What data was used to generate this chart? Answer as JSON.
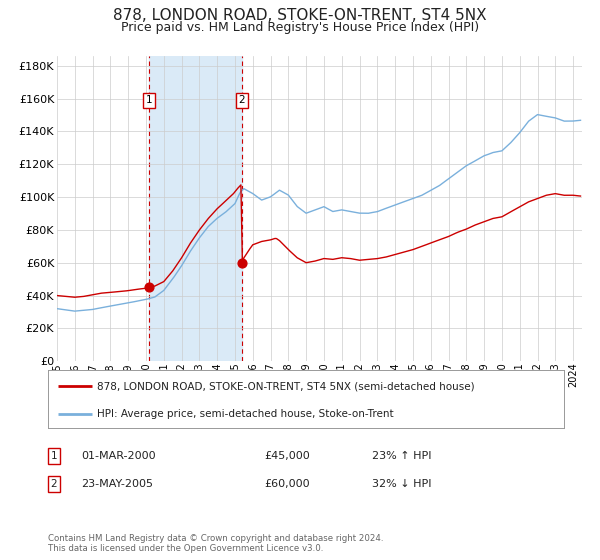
{
  "title": "878, LONDON ROAD, STOKE-ON-TRENT, ST4 5NX",
  "subtitle": "Price paid vs. HM Land Registry's House Price Index (HPI)",
  "title_fontsize": 11,
  "subtitle_fontsize": 9,
  "ylabel_ticks": [
    "£0",
    "£20K",
    "£40K",
    "£60K",
    "£80K",
    "£100K",
    "£120K",
    "£140K",
    "£160K",
    "£180K"
  ],
  "ylabel_values": [
    0,
    20000,
    40000,
    60000,
    80000,
    100000,
    120000,
    140000,
    160000,
    180000
  ],
  "ylim": [
    0,
    186000
  ],
  "sale1_date_num": 2000.17,
  "sale1_price": 45000,
  "sale1_label": "1",
  "sale1_text": "01-MAR-2000",
  "sale1_amount": "£45,000",
  "sale1_pct": "23% ↑ HPI",
  "sale2_date_num": 2005.39,
  "sale2_price": 60000,
  "sale2_label": "2",
  "sale2_text": "23-MAY-2005",
  "sale2_amount": "£60,000",
  "sale2_pct": "32% ↓ HPI",
  "legend_line1": "878, LONDON ROAD, STOKE-ON-TRENT, ST4 5NX (semi-detached house)",
  "legend_line2": "HPI: Average price, semi-detached house, Stoke-on-Trent",
  "footer": "Contains HM Land Registry data © Crown copyright and database right 2024.\nThis data is licensed under the Open Government Licence v3.0.",
  "hpi_color": "#7ab0dc",
  "price_color": "#cc0000",
  "bg_color": "#ffffff",
  "grid_color": "#cccccc",
  "shade_color": "#daeaf7",
  "xmin": 1995.0,
  "xmax": 2024.5
}
